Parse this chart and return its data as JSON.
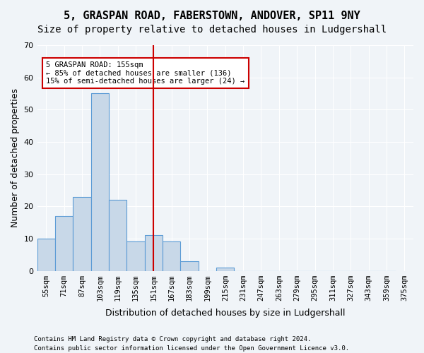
{
  "title": "5, GRASPAN ROAD, FABERSTOWN, ANDOVER, SP11 9NY",
  "subtitle": "Size of property relative to detached houses in Ludgershall",
  "xlabel": "Distribution of detached houses by size in Ludgershall",
  "ylabel": "Number of detached properties",
  "bar_values": [
    10,
    17,
    23,
    55,
    22,
    9,
    11,
    9,
    3,
    0,
    1,
    0,
    0,
    0,
    0,
    0,
    0,
    0,
    0,
    0
  ],
  "bin_labels": [
    "55sqm",
    "71sqm",
    "87sqm",
    "103sqm",
    "119sqm",
    "135sqm",
    "151sqm",
    "167sqm",
    "183sqm",
    "199sqm",
    "215sqm",
    "231sqm",
    "247sqm",
    "263sqm",
    "279sqm",
    "295sqm",
    "311sqm",
    "327sqm",
    "343sqm",
    "359sqm",
    "375sqm"
  ],
  "bin_edges": [
    55,
    71,
    87,
    103,
    119,
    135,
    151,
    167,
    183,
    199,
    215,
    231,
    247,
    263,
    279,
    295,
    311,
    327,
    343,
    359,
    375
  ],
  "bar_color": "#c8d8e8",
  "bar_edge_color": "#5b9bd5",
  "highlight_bar_index": 6,
  "highlight_bar_color": "#a8c4dc",
  "vline_x": 151,
  "vline_color": "#cc0000",
  "ylim": [
    0,
    70
  ],
  "annotation_text": "5 GRASPAN ROAD: 155sqm\n← 85% of detached houses are smaller (136)\n15% of semi-detached houses are larger (24) →",
  "annotation_box_color": "#ffffff",
  "annotation_border_color": "#cc0000",
  "footnote1": "Contains HM Land Registry data © Crown copyright and database right 2024.",
  "footnote2": "Contains public sector information licensed under the Open Government Licence v3.0.",
  "background_color": "#f0f4f8",
  "grid_color": "#ffffff",
  "title_fontsize": 11,
  "subtitle_fontsize": 10,
  "axis_label_fontsize": 9,
  "tick_fontsize": 7.5
}
